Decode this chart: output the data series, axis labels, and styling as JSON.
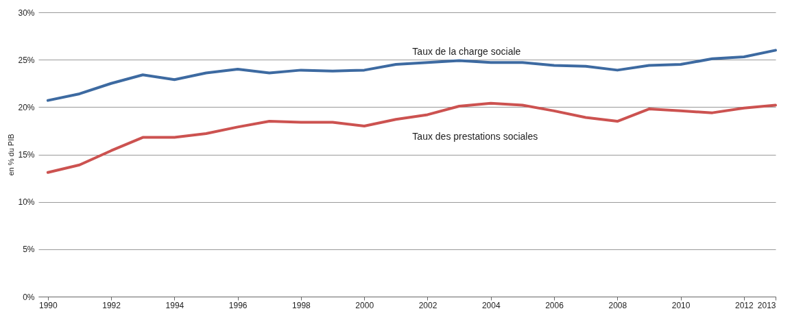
{
  "chart_data": {
    "type": "line",
    "ylabel": "en % du PIB",
    "x": [
      1990,
      1991,
      1992,
      1993,
      1994,
      1995,
      1996,
      1997,
      1998,
      1999,
      2000,
      2001,
      2002,
      2003,
      2004,
      2005,
      2006,
      2007,
      2008,
      2009,
      2010,
      2011,
      2012,
      2013
    ],
    "series": [
      {
        "name": "Taux de la charge sociale",
        "color": "#3d6aa1",
        "values": [
          20.7,
          21.4,
          22.5,
          23.4,
          22.9,
          23.6,
          24.0,
          23.6,
          23.9,
          23.8,
          23.9,
          24.5,
          24.7,
          24.9,
          24.7,
          24.7,
          24.4,
          24.3,
          23.9,
          24.4,
          24.5,
          25.1,
          25.3,
          26.0
        ]
      },
      {
        "name": "Taux des prestations sociales",
        "color": "#cc5250",
        "values": [
          13.1,
          13.9,
          15.4,
          16.8,
          16.8,
          17.2,
          17.9,
          18.5,
          18.4,
          18.4,
          18.0,
          18.7,
          19.2,
          20.1,
          20.4,
          20.2,
          19.6,
          18.9,
          18.5,
          19.8,
          19.6,
          19.4,
          19.9,
          20.2
        ]
      }
    ],
    "xlim": [
      1989.7,
      2013
    ],
    "xticks": [
      1990,
      1992,
      1994,
      1996,
      1998,
      2000,
      2002,
      2004,
      2006,
      2008,
      2010,
      2012,
      2013
    ],
    "ylim": [
      0,
      30
    ],
    "yticks": [
      {
        "value": 0,
        "label": "0%"
      },
      {
        "value": 5,
        "label": "5%"
      },
      {
        "value": 10,
        "label": "10%"
      },
      {
        "value": 15,
        "label": "15%"
      },
      {
        "value": 20,
        "label": "20%"
      },
      {
        "value": 25,
        "label": "25%"
      },
      {
        "value": 30,
        "label": "30%"
      }
    ],
    "grid": "y",
    "legend": false,
    "line_style": "solid",
    "marker": "none"
  }
}
